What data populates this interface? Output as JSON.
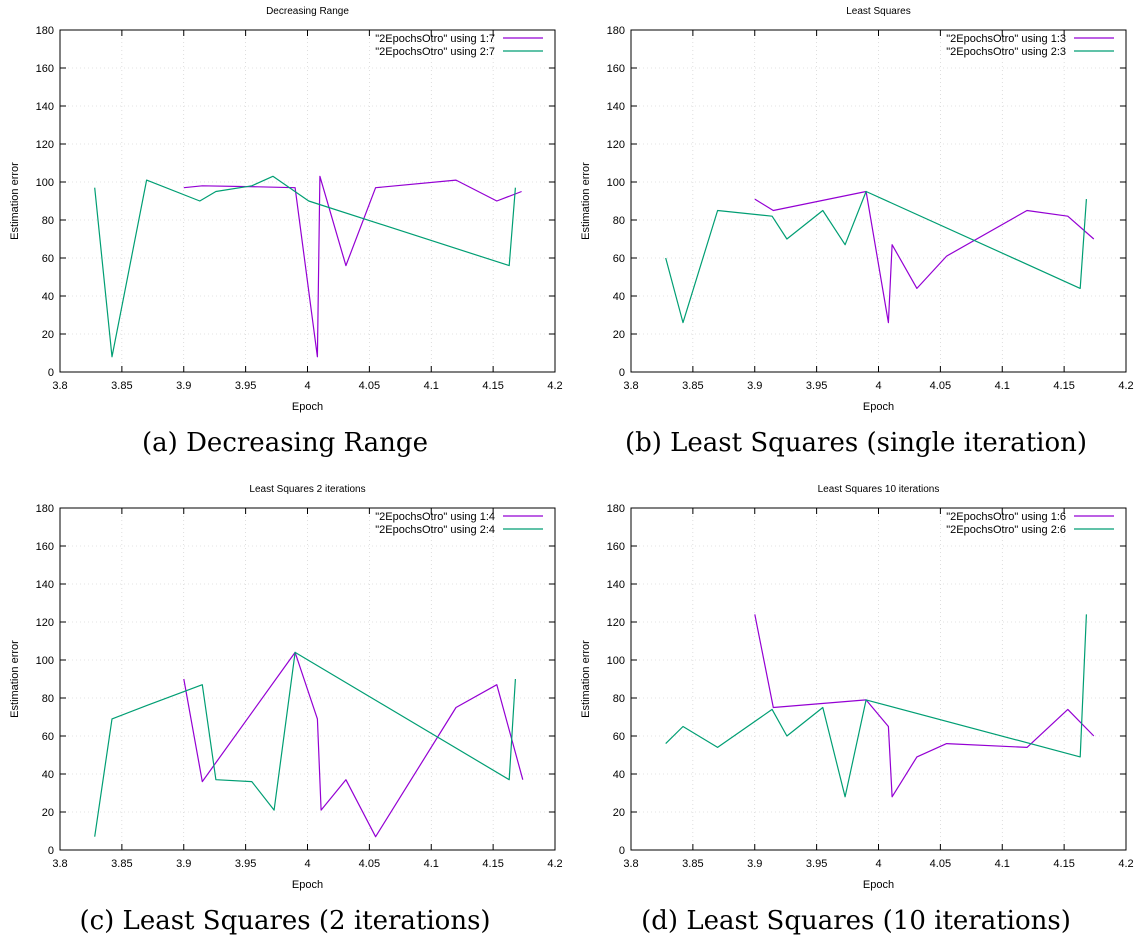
{
  "chart_data": [
    {
      "type": "line",
      "title": "Decreasing Range",
      "xlabel": "Epoch",
      "ylabel": "Estimation error",
      "xlim": [
        3.8,
        4.2
      ],
      "ylim": [
        0,
        180
      ],
      "xticks": [
        "3.8",
        "3.85",
        "3.9",
        "3.95",
        "4",
        "4.05",
        "4.1",
        "4.15",
        "4.2"
      ],
      "yticks": [
        "0",
        "20",
        "40",
        "60",
        "80",
        "100",
        "120",
        "140",
        "160",
        "180"
      ],
      "grid": true,
      "legend_position": "top-right",
      "caption": "(a) Decreasing Range",
      "series": [
        {
          "name": "\"2EpochsOtro\" using 1:7",
          "color": "#9400d3",
          "x": [
            3.9,
            3.915,
            3.96,
            3.99,
            4.008,
            4.01,
            4.031,
            4.055,
            4.12,
            4.153,
            4.173
          ],
          "y": [
            97,
            98,
            97.5,
            97,
            8,
            103,
            56,
            97,
            101,
            90,
            95
          ]
        },
        {
          "name": "\"2EpochsOtro\" using 2:7",
          "color": "#009e73",
          "x": [
            3.828,
            3.842,
            3.87,
            3.913,
            3.926,
            3.955,
            3.972,
            4.001,
            4.163,
            4.168
          ],
          "y": [
            97,
            8,
            101,
            90,
            95,
            98,
            103,
            90,
            56,
            97
          ]
        }
      ]
    },
    {
      "type": "line",
      "title": "Least Squares",
      "xlabel": "Epoch",
      "ylabel": "Estimation error",
      "xlim": [
        3.8,
        4.2
      ],
      "ylim": [
        0,
        180
      ],
      "xticks": [
        "3.8",
        "3.85",
        "3.9",
        "3.95",
        "4",
        "4.05",
        "4.1",
        "4.15",
        "4.2"
      ],
      "yticks": [
        "0",
        "20",
        "40",
        "60",
        "80",
        "100",
        "120",
        "140",
        "160",
        "180"
      ],
      "grid": true,
      "legend_position": "top-right",
      "caption": "(b) Least Squares (single iteration)",
      "series": [
        {
          "name": "\"2EpochsOtro\" using 1:3",
          "color": "#9400d3",
          "x": [
            3.9,
            3.915,
            3.99,
            4.008,
            4.011,
            4.031,
            4.055,
            4.12,
            4.153,
            4.174
          ],
          "y": [
            91,
            85,
            95,
            26,
            67,
            44,
            61,
            85,
            82,
            70
          ]
        },
        {
          "name": "\"2EpochsOtro\" using 2:3",
          "color": "#009e73",
          "x": [
            3.828,
            3.842,
            3.87,
            3.914,
            3.926,
            3.955,
            3.973,
            3.99,
            4.163,
            4.168
          ],
          "y": [
            60,
            26,
            85,
            82,
            70,
            85,
            67,
            95,
            44,
            91
          ]
        }
      ]
    },
    {
      "type": "line",
      "title": "Least Squares 2 iterations",
      "xlabel": "Epoch",
      "ylabel": "Estimation error",
      "xlim": [
        3.8,
        4.2
      ],
      "ylim": [
        0,
        180
      ],
      "xticks": [
        "3.8",
        "3.85",
        "3.9",
        "3.95",
        "4",
        "4.05",
        "4.1",
        "4.15",
        "4.2"
      ],
      "yticks": [
        "0",
        "20",
        "40",
        "60",
        "80",
        "100",
        "120",
        "140",
        "160",
        "180"
      ],
      "grid": true,
      "legend_position": "top-right",
      "caption": "(c) Least Squares (2 iterations)",
      "series": [
        {
          "name": "\"2EpochsOtro\" using 1:4",
          "color": "#9400d3",
          "x": [
            3.9,
            3.915,
            3.99,
            4.008,
            4.011,
            4.031,
            4.055,
            4.12,
            4.153,
            4.174
          ],
          "y": [
            90,
            36,
            104,
            69,
            21,
            37,
            7,
            75,
            87,
            37
          ]
        },
        {
          "name": "\"2EpochsOtro\" using 2:4",
          "color": "#009e73",
          "x": [
            3.828,
            3.842,
            3.87,
            3.915,
            3.926,
            3.955,
            3.973,
            3.99,
            4.163,
            4.168
          ],
          "y": [
            7,
            69,
            76,
            87,
            37,
            36,
            21,
            104,
            37,
            90
          ]
        }
      ]
    },
    {
      "type": "line",
      "title": "Least Squares 10 iterations",
      "xlabel": "Epoch",
      "ylabel": "Estimation error",
      "xlim": [
        3.8,
        4.2
      ],
      "ylim": [
        0,
        180
      ],
      "xticks": [
        "3.8",
        "3.85",
        "3.9",
        "3.95",
        "4",
        "4.05",
        "4.1",
        "4.15",
        "4.2"
      ],
      "yticks": [
        "0",
        "20",
        "40",
        "60",
        "80",
        "100",
        "120",
        "140",
        "160",
        "180"
      ],
      "grid": true,
      "legend_position": "top-right",
      "caption": "(d) Least Squares (10 iterations)",
      "series": [
        {
          "name": "\"2EpochsOtro\" using 1:6",
          "color": "#9400d3",
          "x": [
            3.9,
            3.915,
            3.99,
            4.008,
            4.011,
            4.031,
            4.055,
            4.12,
            4.153,
            4.174
          ],
          "y": [
            124,
            75,
            79,
            65,
            28,
            49,
            56,
            54,
            74,
            60
          ]
        },
        {
          "name": "\"2EpochsOtro\" using 2:6",
          "color": "#009e73",
          "x": [
            3.828,
            3.842,
            3.87,
            3.914,
            3.926,
            3.955,
            3.973,
            3.99,
            4.163,
            4.168
          ],
          "y": [
            56,
            65,
            54,
            74,
            60,
            75,
            28,
            79,
            49,
            124
          ]
        }
      ]
    }
  ]
}
